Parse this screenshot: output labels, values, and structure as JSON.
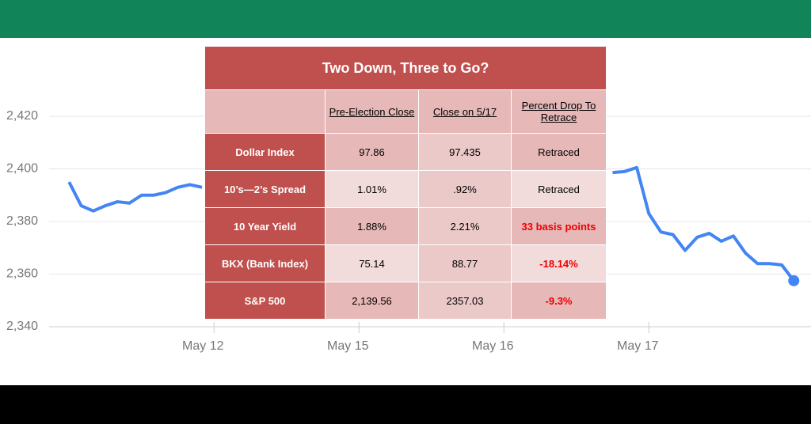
{
  "chart_data": {
    "type": "line",
    "categories": [
      null,
      null,
      null,
      null,
      null,
      null,
      null,
      null,
      null,
      null,
      null,
      null,
      "May 12",
      null,
      null,
      null,
      null,
      null,
      null,
      null,
      null,
      null,
      null,
      null,
      "May 15",
      null,
      null,
      null,
      null,
      null,
      null,
      null,
      null,
      null,
      null,
      null,
      "May 16",
      null,
      null,
      null,
      null,
      null,
      null,
      null,
      null,
      null,
      null,
      null,
      "May 17",
      null,
      null,
      null,
      null,
      null,
      null,
      null,
      null,
      null,
      null,
      null,
      null
    ],
    "series": [
      {
        "color": "#4285f4",
        "values": [
          2395,
          2386,
          2384,
          2386,
          2387.5,
          2387,
          2390,
          2390,
          2391,
          2393,
          2394,
          2393,
          null,
          null,
          null,
          null,
          null,
          null,
          null,
          null,
          null,
          null,
          null,
          null,
          null,
          null,
          null,
          null,
          null,
          null,
          null,
          null,
          null,
          null,
          null,
          null,
          null,
          null,
          null,
          null,
          null,
          null,
          null,
          null,
          null,
          2398.6,
          2399,
          2400.5,
          2383,
          2376,
          2375,
          2369,
          2374,
          2375.5,
          2372.5,
          2374.5,
          2368,
          2364,
          2364,
          2363.5,
          2357.5
        ]
      }
    ],
    "ylim": [
      2340,
      2420
    ],
    "yticks": [
      {
        "value": 2340,
        "label": "2,340"
      },
      {
        "value": 2360,
        "label": "2,360"
      },
      {
        "value": 2380,
        "label": "2,380"
      },
      {
        "value": 2400,
        "label": "2,400"
      },
      {
        "value": 2420,
        "label": "2,420"
      }
    ],
    "grid": true,
    "end_marker": true
  },
  "table": {
    "title": "Two Down, Three to Go?",
    "header": [
      "Pre-Election Close",
      "Close on 5/17",
      "Percent Drop To Retrace"
    ],
    "rows": [
      [
        "Dollar Index",
        "97.86",
        "97.435",
        "Retraced"
      ],
      [
        "10’s—2’s Spread",
        "1.01%",
        ".92%",
        "Retraced"
      ],
      [
        "10 Year Yield",
        "1.88%",
        "2.21%",
        "33 basis points"
      ],
      [
        "BKX (Bank Index)",
        "75.14",
        "88.77",
        "-18.14%"
      ],
      [
        "S&P 500",
        "2,139.56",
        "2357.03",
        "-9.3%"
      ]
    ]
  }
}
